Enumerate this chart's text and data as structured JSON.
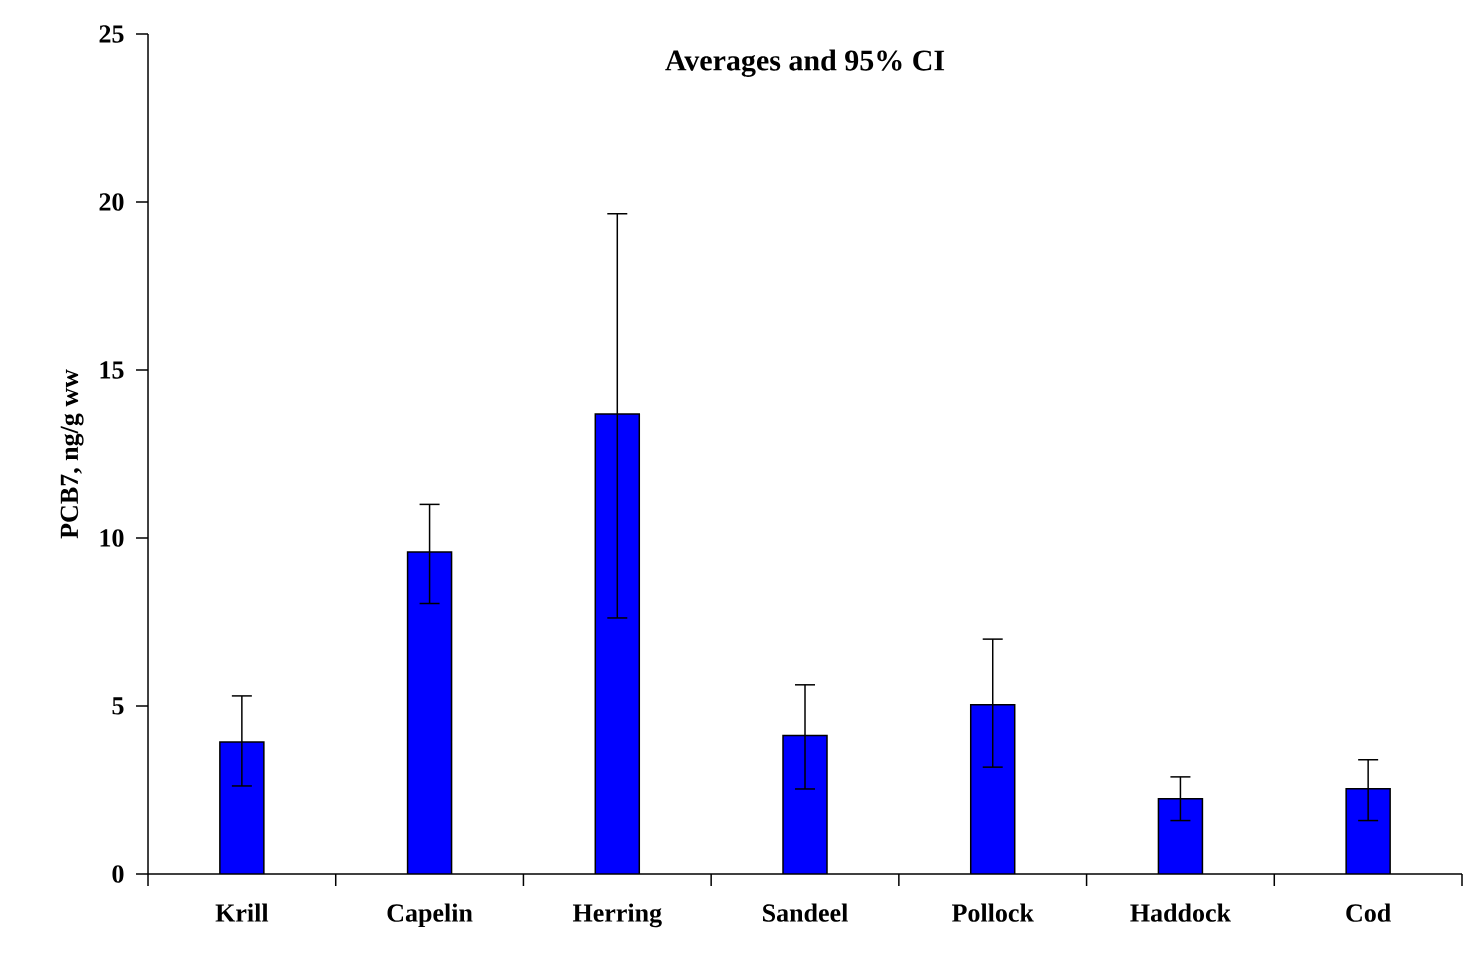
{
  "chart_data": {
    "type": "bar",
    "title": "Averages and 95% CI",
    "ylabel": "PCB7, ng/g ww",
    "categories": [
      "Krill",
      "Capelin",
      "Herring",
      "Sandeel",
      "Pollock",
      "Haddock",
      "Cod"
    ],
    "values": [
      3.93,
      9.58,
      13.69,
      4.12,
      5.04,
      2.24,
      2.54
    ],
    "errors": [
      [
        2.62,
        5.3
      ],
      [
        8.05,
        11.0
      ],
      [
        7.62,
        19.65
      ],
      [
        2.53,
        5.63
      ],
      [
        3.18,
        6.99
      ],
      [
        1.59,
        2.89
      ],
      [
        1.59,
        3.4
      ]
    ],
    "color": "#0000ff",
    "ylim": [
      0,
      25
    ],
    "yticks": [
      0,
      5,
      10,
      15,
      20,
      25
    ]
  }
}
